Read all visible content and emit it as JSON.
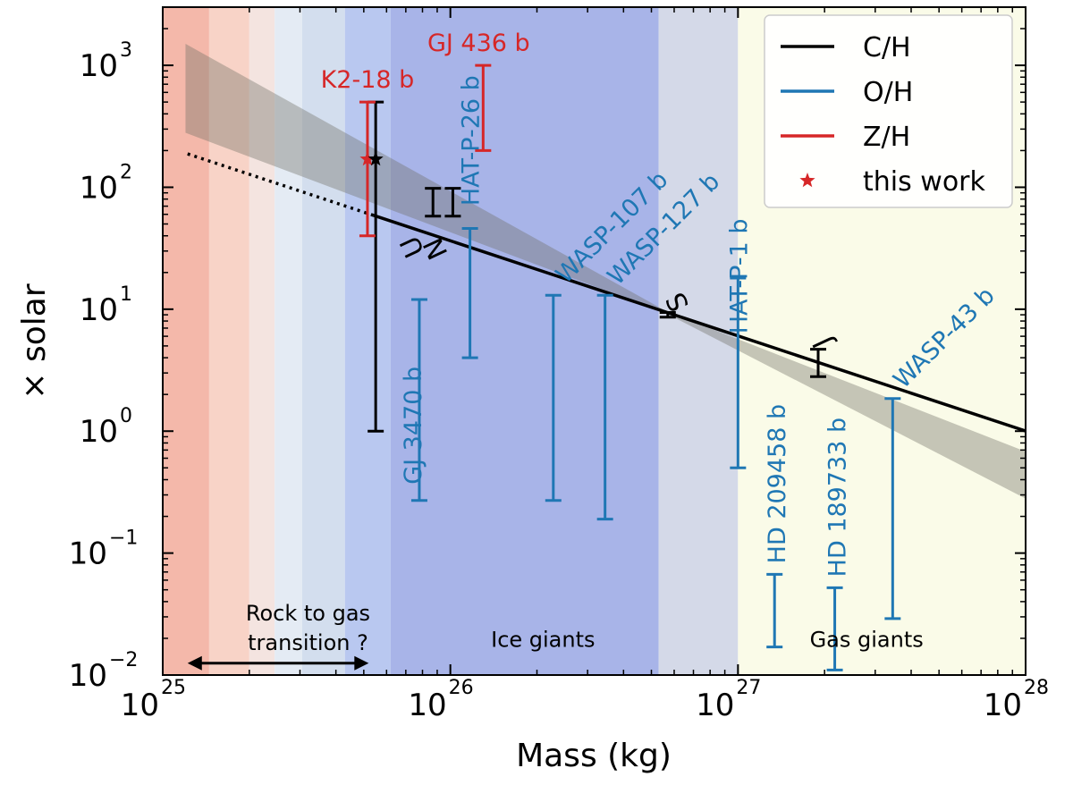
{
  "chart_data": {
    "type": "scatter",
    "title": "",
    "xlabel": "Mass (kg)",
    "ylabel": "× solar",
    "x_scale": "log",
    "y_scale": "log",
    "xlim": [
      1e+25,
      1e+28
    ],
    "ylim": [
      0.01,
      3000
    ],
    "x_ticks": [
      {
        "value": 1e+25,
        "base": "10",
        "exp": "25"
      },
      {
        "value": 1e+26,
        "base": "10",
        "exp": "26"
      },
      {
        "value": 1e+27,
        "base": "10",
        "exp": "27"
      },
      {
        "value": 1e+28,
        "base": "10",
        "exp": "28"
      }
    ],
    "y_ticks": [
      {
        "value": 0.01,
        "base": "10",
        "exp": "−2"
      },
      {
        "value": 0.1,
        "base": "10",
        "exp": "−1"
      },
      {
        "value": 1,
        "base": "10",
        "exp": "0"
      },
      {
        "value": 10,
        "base": "10",
        "exp": "1"
      },
      {
        "value": 100,
        "base": "10",
        "exp": "2"
      },
      {
        "value": 1000,
        "base": "10",
        "exp": "3"
      }
    ],
    "background_bands": [
      {
        "x0": 1e+25,
        "x1": 1.45e+25,
        "color": "#f4b8aa"
      },
      {
        "x0": 1.45e+25,
        "x1": 2e+25,
        "color": "#f8d3c7"
      },
      {
        "x0": 2e+25,
        "x1": 2.45e+25,
        "color": "#f4e4e0"
      },
      {
        "x0": 2.45e+25,
        "x1": 3.05e+25,
        "color": "#e4ebf4"
      },
      {
        "x0": 3.05e+25,
        "x1": 4.3e+25,
        "color": "#d3deee"
      },
      {
        "x0": 4.3e+25,
        "x1": 6.2e+25,
        "color": "#b9c8f0"
      },
      {
        "x0": 6.2e+25,
        "x1": 5.3e+26,
        "color": "#a8b4e8"
      },
      {
        "x0": 5.3e+26,
        "x1": 1e+27,
        "color": "#d4d9e8"
      },
      {
        "x0": 1e+27,
        "x1": 1e+28,
        "color": "#fafbe8"
      }
    ],
    "region_labels": [
      {
        "text": "Rock to gas",
        "x": 3.2e+25,
        "y": 0.028
      },
      {
        "text": "transition ?",
        "x": 3.2e+25,
        "y": 0.016
      },
      {
        "text": "Ice giants",
        "x": 2.1e+26,
        "y": 0.017
      },
      {
        "text": "Gas giants",
        "x": 2.8e+27,
        "y": 0.017
      }
    ],
    "transition_arrow": {
      "x0": 1.22e+25,
      "x1": 5.2e+25,
      "y": 0.0125
    },
    "trend_line": {
      "slope": -0.78,
      "anchor_x": 5.6e+26,
      "anchor_y": 9.5
    },
    "trend_solid_from": 5.4e+25,
    "trend_dotted_from": 1.22e+25,
    "trend_band": {
      "x_start": 1.2e+25,
      "at_start": [
        280,
        1500
      ],
      "x_anchor": 5.6e+26,
      "at_anchor": [
        9.3,
        9.7
      ],
      "x_end": 1e+28,
      "at_end": [
        0.28,
        0.68
      ]
    },
    "series": [
      {
        "name": "C/H",
        "color": "#000000",
        "points": [
          {
            "x": 5.5e+25,
            "y": 170,
            "lo": 1.0,
            "hi": 500,
            "label": ""
          },
          {
            "x": 8.7e+25,
            "y": 75,
            "lo": 58,
            "hi": 98,
            "label": "U"
          },
          {
            "x": 1.02e+26,
            "y": 77,
            "lo": 58,
            "hi": 98,
            "label": "N"
          },
          {
            "x": 5.7e+26,
            "y": 9.0,
            "lo": 8.6,
            "hi": 9.4,
            "label": "S"
          },
          {
            "x": 1.9e+27,
            "y": 3.7,
            "lo": 2.8,
            "hi": 4.7,
            "label": "J"
          }
        ]
      },
      {
        "name": "O/H",
        "color": "#1f77b4",
        "points": [
          {
            "x": 7.8e+25,
            "y": 1.2,
            "lo": 0.27,
            "hi": 12,
            "label": "GJ 3470 b"
          },
          {
            "x": 1.17e+26,
            "y": 13,
            "lo": 4.0,
            "hi": 46,
            "label": "HAT-P-26 b"
          },
          {
            "x": 2.28e+26,
            "y": 1.8,
            "lo": 0.27,
            "hi": 13,
            "label": "WASP-107 b"
          },
          {
            "x": 3.45e+26,
            "y": 1.6,
            "lo": 0.19,
            "hi": 13,
            "label": "WASP-127 b"
          },
          {
            "x": 1e+27,
            "y": 3.0,
            "lo": 0.5,
            "hi": 18,
            "label": "HAT-P-1 b"
          },
          {
            "x": 1.34e+27,
            "y": 0.034,
            "lo": 0.017,
            "hi": 0.067,
            "label": "HD 209458 b"
          },
          {
            "x": 2.17e+27,
            "y": 0.024,
            "lo": 0.011,
            "hi": 0.052,
            "label": "HD 189733 b"
          },
          {
            "x": 3.45e+27,
            "y": 0.24,
            "lo": 0.029,
            "hi": 1.85,
            "label": "WASP-43 b"
          }
        ]
      },
      {
        "name": "Z/H",
        "color": "#d62728",
        "points": [
          {
            "x": 5.15e+25,
            "y": 170,
            "lo": 40,
            "hi": 500,
            "label": "K2-18 b"
          },
          {
            "x": 1.3e+26,
            "y": 450,
            "lo": 200,
            "hi": 1000,
            "label": "GJ 436 b"
          }
        ]
      }
    ],
    "this_work": [
      {
        "x": 5.15e+25,
        "y": 170,
        "color": "#d62728"
      },
      {
        "x": 5.5e+25,
        "y": 170,
        "color": "#000000"
      }
    ],
    "legend": {
      "position": "top-right",
      "entries": [
        {
          "label": "C/H",
          "color": "#000000",
          "kind": "line"
        },
        {
          "label": "O/H",
          "color": "#1f77b4",
          "kind": "line"
        },
        {
          "label": "Z/H",
          "color": "#d62728",
          "kind": "line"
        },
        {
          "label": "this work",
          "color": "#d62728",
          "kind": "star"
        }
      ]
    }
  }
}
